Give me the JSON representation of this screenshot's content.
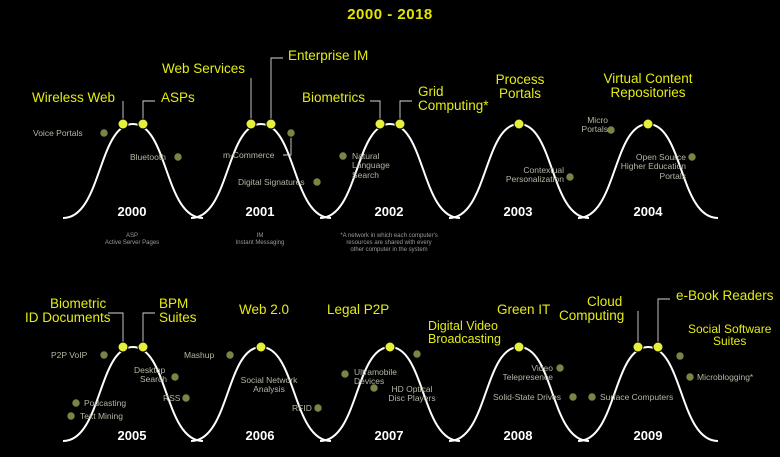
{
  "title": "2000 - 2018",
  "colors": {
    "curve": "#ffffff",
    "peak_dot": "#e6f03a",
    "dim_dot": "#7d8245",
    "label_bright": "#e4ec12",
    "label_dim": "#b3b8a3"
  },
  "panels": [
    {
      "year": "2000",
      "labels": {
        "wireless_web": "Wireless Web",
        "asps": "ASPs",
        "voice_portals": "Voice Portals",
        "bluetooth": "Bluetooth"
      },
      "notes": [
        "ASP",
        "Active Server Pages"
      ]
    },
    {
      "year": "2001",
      "labels": {
        "web_services": "Web Services",
        "enterprise_im": "Enterprise IM",
        "m_commerce": "m-Commerce",
        "digital_signatures": "Digital Signatures"
      },
      "notes": [
        "IM",
        "Instant Messaging"
      ]
    },
    {
      "year": "2002",
      "labels": {
        "biometrics": "Biometrics",
        "grid_computing": [
          "Grid",
          "Computing*"
        ],
        "natural_language_search": [
          "Natural",
          "Language",
          "Search"
        ]
      },
      "notes": [
        "*A network in which each computer's",
        "resources are shared with every",
        "other computer in the system"
      ]
    },
    {
      "year": "2003",
      "labels": {
        "process_portals": [
          "Process",
          "Portals"
        ],
        "contextual_personalization": [
          "Contextual",
          "Personalization"
        ]
      }
    },
    {
      "year": "2004",
      "labels": {
        "virtual_content_repositories": [
          "Virtual Content",
          "Repositories"
        ],
        "micro_portals": [
          "Micro",
          "Portals"
        ],
        "open_source_portals": [
          "Open Source",
          "Higher Education",
          "Portals"
        ]
      }
    },
    {
      "year": "2005",
      "labels": {
        "biometric_id_documents": [
          "Biometric",
          "ID Documents"
        ],
        "bpm_suites": [
          "BPM",
          "Suites"
        ],
        "p2p_voip": "P2P VoIP",
        "desktop_search": [
          "Desktop",
          "Search"
        ],
        "rss": "RSS",
        "podcasting": "Podcasting",
        "text_mining": "Text Mining"
      }
    },
    {
      "year": "2006",
      "labels": {
        "web_2_0": "Web 2.0",
        "mashup": "Mashup",
        "social_network_analysis": [
          "Social Network",
          "Analysis"
        ],
        "rfid": "RFID"
      }
    },
    {
      "year": "2007",
      "labels": {
        "legal_p2p": "Legal P2P",
        "digital_video_broadcasting": [
          "Digital Video",
          "Broadcasting"
        ],
        "ultramobile_devices": [
          "Ultramobile",
          "Devices"
        ],
        "hd_optical_disc_players": [
          "HD Optical",
          "Disc Players"
        ]
      }
    },
    {
      "year": "2008",
      "labels": {
        "green_it": "Green IT",
        "video_telepresence": [
          "Video",
          "Telepresence"
        ],
        "solid_state_drives": "Solid-State Drives"
      }
    },
    {
      "year": "2009",
      "labels": {
        "cloud_computing": [
          "Cloud",
          "Computing"
        ],
        "ebook_readers": "e-Book Readers",
        "social_software_suites": [
          "Social Software",
          "Suites"
        ],
        "microblogging": "Microblogging*",
        "surface_computers": "Surface Computers"
      }
    }
  ]
}
